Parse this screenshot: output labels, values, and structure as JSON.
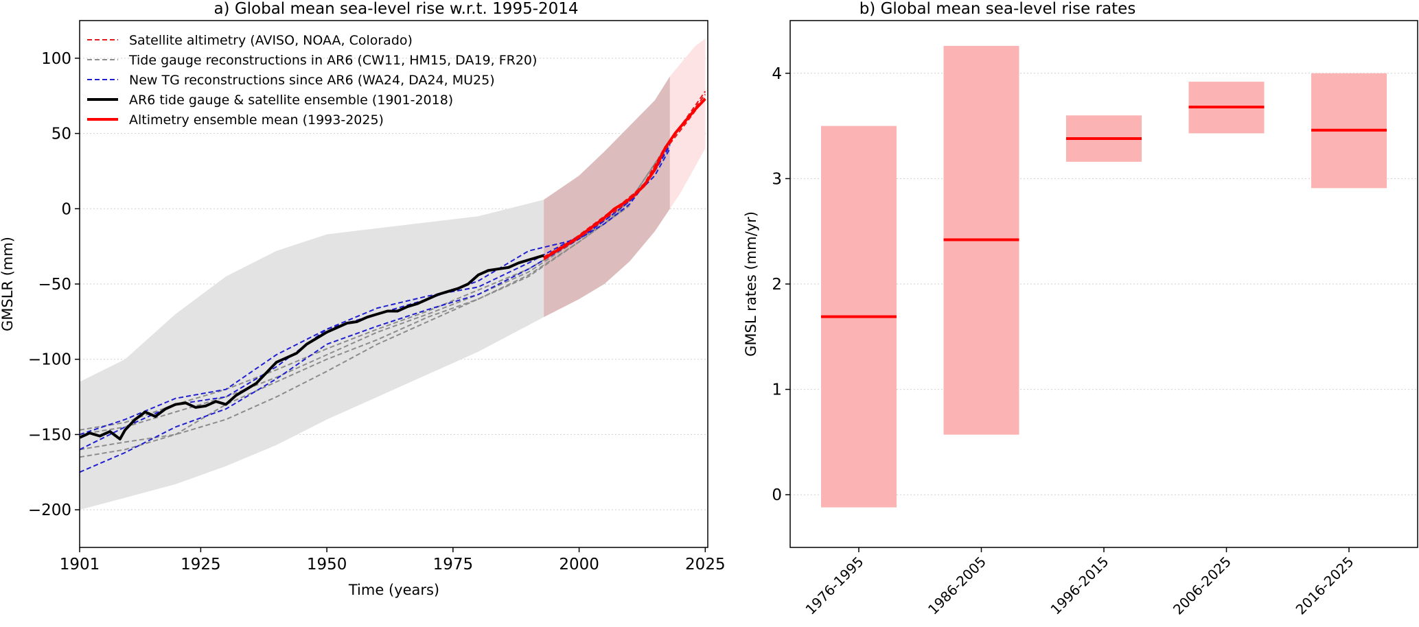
{
  "chart_data": [
    {
      "type": "line",
      "title": "a) Global mean sea-level rise w.r.t. 1995-2014",
      "xlabel": "Time (years)",
      "ylabel": "GMSLR (mm)",
      "xlim": [
        1901,
        2025.5
      ],
      "ylim": [
        -225,
        125
      ],
      "xticks": [
        1901,
        1925,
        1950,
        1975,
        2000,
        2025
      ],
      "yticks": [
        100,
        50,
        0,
        -50,
        -100,
        -150,
        -200
      ],
      "grid": "y",
      "legend_position": "top-left",
      "legend": [
        {
          "label": "Satellite altimetry (AVISO, NOAA, Colorado)",
          "color": "#e31a1c",
          "style": "dashed"
        },
        {
          "label": "Tide gauge reconstructions in AR6 (CW11, HM15, DA19, FR20)",
          "color": "#8c8c8c",
          "style": "dashed"
        },
        {
          "label": "New TG reconstructions since AR6 (WA24, DA24, MU25)",
          "color": "#1f1fd0",
          "style": "dashed"
        },
        {
          "label": "AR6 tide gauge & satellite ensemble (1901-2018)",
          "color": "#000000",
          "style": "solid"
        },
        {
          "label": "Altimetry ensemble mean (1993-2025)",
          "color": "#ff0000",
          "style": "solid"
        }
      ],
      "uncertainty_bands": [
        {
          "name": "AR6 ensemble range",
          "color": "#e3e3e3",
          "x": [
            1901,
            1910,
            1920,
            1930,
            1940,
            1950,
            1960,
            1970,
            1980,
            1993
          ],
          "lower": [
            -200,
            -192,
            -183,
            -171,
            -157,
            -140,
            -125,
            -110,
            -95,
            -72
          ],
          "upper": [
            -115,
            -100,
            -70,
            -45,
            -28,
            -17,
            -13,
            -9,
            -5,
            6
          ]
        },
        {
          "name": "Altimetry range 1993-2018",
          "color": "#dcbcbc",
          "x": [
            1993,
            2000,
            2005,
            2010,
            2015,
            2018
          ],
          "lower": [
            -72,
            -60,
            -50,
            -35,
            -15,
            0
          ],
          "upper": [
            6,
            22,
            38,
            55,
            72,
            88
          ]
        },
        {
          "name": "Altimetry range 2018-2025",
          "color": "#fde3e3",
          "x": [
            2018,
            2020,
            2023,
            2025
          ],
          "lower": [
            0,
            10,
            28,
            40
          ],
          "upper": [
            88,
            96,
            108,
            113
          ]
        }
      ],
      "series": [
        {
          "name": "AR6 tide gauge & satellite ensemble (1901-2018)",
          "color": "#000000",
          "style": "solid",
          "width": 4,
          "x": [
            1901,
            1903,
            1905,
            1907,
            1909,
            1910,
            1912,
            1914,
            1916,
            1918,
            1920,
            1922,
            1924,
            1926,
            1928,
            1930,
            1932,
            1934,
            1936,
            1938,
            1940,
            1942,
            1944,
            1946,
            1948,
            1950,
            1952,
            1954,
            1956,
            1958,
            1960,
            1962,
            1964,
            1966,
            1968,
            1970,
            1972,
            1974,
            1976,
            1978,
            1980,
            1982,
            1984,
            1986,
            1988,
            1990,
            1993
          ],
          "y": [
            -152,
            -149,
            -151,
            -148,
            -153,
            -147,
            -140,
            -135,
            -138,
            -133,
            -130,
            -129,
            -132,
            -131,
            -128,
            -130,
            -124,
            -120,
            -116,
            -109,
            -102,
            -99,
            -96,
            -90,
            -86,
            -82,
            -79,
            -76,
            -75,
            -72,
            -70,
            -68,
            -68,
            -65,
            -63,
            -60,
            -57,
            -55,
            -53,
            -50,
            -44,
            -41,
            -40,
            -39,
            -36,
            -34,
            -31
          ]
        },
        {
          "name": "Altimetry ensemble mean (1993-2025)",
          "color": "#ff0000",
          "style": "solid",
          "width": 4,
          "x": [
            1993,
            1995,
            1997,
            1999,
            2001,
            2003,
            2005,
            2007,
            2009,
            2011,
            2013,
            2015,
            2017,
            2019,
            2021,
            2023,
            2025
          ],
          "y": [
            -33,
            -29,
            -25,
            -21,
            -16,
            -11,
            -6,
            0,
            4,
            9,
            16,
            26,
            40,
            50,
            58,
            66,
            73
          ]
        },
        {
          "name": "CW11",
          "color": "#8c8c8c",
          "style": "dashed",
          "width": 2,
          "x": [
            1901,
            1910,
            1920,
            1930,
            1940,
            1950,
            1960,
            1970,
            1980,
            1990,
            2000,
            2005,
            2009
          ],
          "y": [
            -147,
            -142,
            -130,
            -120,
            -107,
            -93,
            -80,
            -68,
            -54,
            -40,
            -20,
            -10,
            0
          ]
        },
        {
          "name": "HM15",
          "color": "#8c8c8c",
          "style": "dashed",
          "width": 2,
          "x": [
            1901,
            1910,
            1920,
            1930,
            1940,
            1950,
            1960,
            1970,
            1980,
            1990,
            2000,
            2005,
            2010
          ],
          "y": [
            -160,
            -155,
            -150,
            -140,
            -125,
            -108,
            -90,
            -75,
            -60,
            -44,
            -22,
            -10,
            2
          ]
        },
        {
          "name": "DA19",
          "color": "#8c8c8c",
          "style": "dashed",
          "width": 2,
          "x": [
            1901,
            1910,
            1920,
            1930,
            1940,
            1950,
            1960,
            1970,
            1980,
            1990,
            2000,
            2005,
            2010,
            2015
          ],
          "y": [
            -150,
            -145,
            -135,
            -125,
            -112,
            -97,
            -82,
            -70,
            -57,
            -42,
            -20,
            -8,
            5,
            30
          ]
        },
        {
          "name": "FR20",
          "color": "#8c8c8c",
          "style": "dashed",
          "width": 2,
          "x": [
            1901,
            1910,
            1920,
            1930,
            1940,
            1950,
            1960,
            1970,
            1980,
            1990,
            2000,
            2005,
            2010,
            2018
          ],
          "y": [
            -165,
            -160,
            -150,
            -130,
            -115,
            -100,
            -87,
            -72,
            -60,
            -45,
            -22,
            -10,
            5,
            45
          ]
        },
        {
          "name": "WA24",
          "color": "#1f1fd0",
          "style": "dashed",
          "width": 2,
          "x": [
            1901,
            1910,
            1920,
            1930,
            1940,
            1950,
            1960,
            1970,
            1980,
            1990,
            2000,
            2005,
            2010,
            2015,
            2018
          ],
          "y": [
            -175,
            -162,
            -145,
            -133,
            -113,
            -90,
            -78,
            -67,
            -57,
            -40,
            -20,
            -10,
            3,
            25,
            43
          ]
        },
        {
          "name": "DA24",
          "color": "#1f1fd0",
          "style": "dashed",
          "width": 2,
          "x": [
            1901,
            1910,
            1920,
            1930,
            1940,
            1950,
            1960,
            1970,
            1980,
            1990,
            2000,
            2005,
            2010,
            2015,
            2018
          ],
          "y": [
            -160,
            -145,
            -130,
            -125,
            -105,
            -80,
            -66,
            -58,
            -52,
            -36,
            -18,
            -8,
            5,
            25,
            42
          ]
        },
        {
          "name": "MU25",
          "color": "#1f1fd0",
          "style": "dashed",
          "width": 2,
          "x": [
            1901,
            1910,
            1920,
            1930,
            1940,
            1950,
            1960,
            1970,
            1980,
            1990,
            2000,
            2005,
            2010,
            2015,
            2018
          ],
          "y": [
            -150,
            -140,
            -126,
            -120,
            -97,
            -80,
            -70,
            -60,
            -48,
            -28,
            -20,
            -8,
            5,
            22,
            40
          ]
        },
        {
          "name": "AVISO",
          "color": "#e31a1c",
          "style": "dashed",
          "width": 2,
          "x": [
            1993,
            1997,
            2001,
            2005,
            2009,
            2013,
            2017,
            2021,
            2025
          ],
          "y": [
            -34,
            -25,
            -15,
            -5,
            5,
            16,
            40,
            58,
            76
          ]
        },
        {
          "name": "NOAA",
          "color": "#e31a1c",
          "style": "dashed",
          "width": 2,
          "x": [
            1993,
            1997,
            2001,
            2005,
            2009,
            2013,
            2017,
            2021,
            2025
          ],
          "y": [
            -32,
            -24,
            -16,
            -6,
            4,
            17,
            41,
            59,
            78
          ]
        },
        {
          "name": "Colorado",
          "color": "#e31a1c",
          "style": "dashed",
          "width": 2,
          "x": [
            1993,
            1997,
            2001,
            2005,
            2009,
            2013,
            2017,
            2021,
            2025
          ],
          "y": [
            -33,
            -26,
            -17,
            -7,
            3,
            15,
            39,
            56,
            74
          ]
        }
      ]
    },
    {
      "type": "bar",
      "title": "b) Global mean sea-level rise rates",
      "xlabel": "",
      "ylabel": "GMSL rates (mm/yr)",
      "ylim": [
        -0.5,
        4.5
      ],
      "yticks": [
        0,
        1,
        2,
        3,
        4
      ],
      "grid": "y",
      "categories": [
        "1976-1995",
        "1986-2005",
        "1996-2015",
        "2006-2025",
        "2016-2025"
      ],
      "low": [
        -0.12,
        0.57,
        3.16,
        3.43,
        2.91
      ],
      "high": [
        3.5,
        4.26,
        3.6,
        3.92,
        4.0
      ],
      "mean": [
        1.69,
        2.42,
        3.38,
        3.68,
        3.46
      ],
      "colors": {
        "range": "#fbb3b3",
        "mean": "#ff0000"
      }
    }
  ]
}
